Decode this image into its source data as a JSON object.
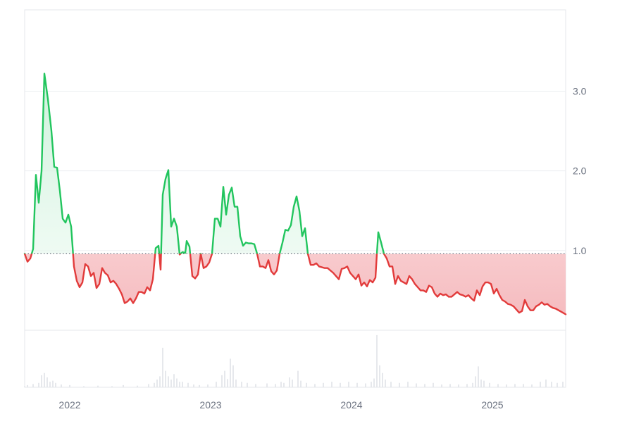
{
  "chart_data": {
    "type": "area",
    "baseline": 0.96,
    "y_ticks": [
      {
        "value": 1.0,
        "label": "1.0"
      },
      {
        "value": 2.0,
        "label": "2.0"
      },
      {
        "value": 3.0,
        "label": "3.0"
      }
    ],
    "x_ticks": [
      {
        "value": 2022.0,
        "label": "2022"
      },
      {
        "value": 2023.0,
        "label": "2023"
      },
      {
        "value": 2024.0,
        "label": "2024"
      },
      {
        "value": 2025.0,
        "label": "2025"
      }
    ],
    "xlim": [
      2021.68,
      2025.52
    ],
    "ylim": [
      0,
      4.02
    ],
    "grid": true,
    "colors": {
      "up_line": "#22c55e",
      "down_line": "#e23b3b",
      "up_fill": "#d8f5e3",
      "down_fill": "#f7c9cb",
      "grid": "#eceef1",
      "baseline": "#6b7280",
      "volume": "#dfe3e8"
    },
    "series": [
      {
        "values": [
          [
            2021.68,
            0.96
          ],
          [
            2021.7,
            0.86
          ],
          [
            2021.72,
            0.9
          ],
          [
            2021.74,
            1.02
          ],
          [
            2021.76,
            1.95
          ],
          [
            2021.78,
            1.6
          ],
          [
            2021.8,
            2.0
          ],
          [
            2021.82,
            3.22
          ],
          [
            2021.845,
            2.9
          ],
          [
            2021.87,
            2.5
          ],
          [
            2021.89,
            2.05
          ],
          [
            2021.91,
            2.04
          ],
          [
            2021.93,
            1.75
          ],
          [
            2021.95,
            1.4
          ],
          [
            2021.97,
            1.35
          ],
          [
            2021.99,
            1.45
          ],
          [
            2022.01,
            1.3
          ],
          [
            2022.03,
            0.8
          ],
          [
            2022.05,
            0.62
          ],
          [
            2022.07,
            0.54
          ],
          [
            2022.09,
            0.6
          ],
          [
            2022.11,
            0.83
          ],
          [
            2022.13,
            0.8
          ],
          [
            2022.15,
            0.68
          ],
          [
            2022.17,
            0.72
          ],
          [
            2022.19,
            0.53
          ],
          [
            2022.21,
            0.58
          ],
          [
            2022.23,
            0.78
          ],
          [
            2022.25,
            0.72
          ],
          [
            2022.27,
            0.69
          ],
          [
            2022.29,
            0.6
          ],
          [
            2022.31,
            0.62
          ],
          [
            2022.33,
            0.58
          ],
          [
            2022.35,
            0.52
          ],
          [
            2022.37,
            0.45
          ],
          [
            2022.39,
            0.34
          ],
          [
            2022.41,
            0.36
          ],
          [
            2022.43,
            0.4
          ],
          [
            2022.45,
            0.34
          ],
          [
            2022.47,
            0.4
          ],
          [
            2022.49,
            0.48
          ],
          [
            2022.51,
            0.48
          ],
          [
            2022.53,
            0.46
          ],
          [
            2022.55,
            0.54
          ],
          [
            2022.57,
            0.5
          ],
          [
            2022.59,
            0.64
          ],
          [
            2022.61,
            1.03
          ],
          [
            2022.63,
            1.06
          ],
          [
            2022.645,
            0.76
          ],
          [
            2022.66,
            1.7
          ],
          [
            2022.68,
            1.9
          ],
          [
            2022.7,
            2.01
          ],
          [
            2022.72,
            1.3
          ],
          [
            2022.74,
            1.4
          ],
          [
            2022.76,
            1.3
          ],
          [
            2022.78,
            0.95
          ],
          [
            2022.8,
            0.98
          ],
          [
            2022.82,
            0.97
          ],
          [
            2022.83,
            1.12
          ],
          [
            2022.85,
            1.05
          ],
          [
            2022.87,
            0.68
          ],
          [
            2022.89,
            0.65
          ],
          [
            2022.91,
            0.7
          ],
          [
            2022.93,
            0.96
          ],
          [
            2022.95,
            0.78
          ],
          [
            2022.97,
            0.8
          ],
          [
            2022.99,
            0.85
          ],
          [
            2023.01,
            0.96
          ],
          [
            2023.03,
            1.4
          ],
          [
            2023.05,
            1.4
          ],
          [
            2023.07,
            1.3
          ],
          [
            2023.09,
            1.8
          ],
          [
            2023.11,
            1.45
          ],
          [
            2023.13,
            1.7
          ],
          [
            2023.15,
            1.79
          ],
          [
            2023.17,
            1.55
          ],
          [
            2023.19,
            1.55
          ],
          [
            2023.21,
            1.18
          ],
          [
            2023.23,
            1.06
          ],
          [
            2023.25,
            1.1
          ],
          [
            2023.27,
            1.09
          ],
          [
            2023.29,
            1.09
          ],
          [
            2023.31,
            1.08
          ],
          [
            2023.33,
            0.96
          ],
          [
            2023.35,
            0.8
          ],
          [
            2023.37,
            0.8
          ],
          [
            2023.39,
            0.78
          ],
          [
            2023.41,
            0.88
          ],
          [
            2023.43,
            0.74
          ],
          [
            2023.45,
            0.7
          ],
          [
            2023.47,
            0.75
          ],
          [
            2023.49,
            0.96
          ],
          [
            2023.51,
            1.1
          ],
          [
            2023.53,
            1.26
          ],
          [
            2023.55,
            1.25
          ],
          [
            2023.57,
            1.32
          ],
          [
            2023.59,
            1.55
          ],
          [
            2023.61,
            1.68
          ],
          [
            2023.63,
            1.5
          ],
          [
            2023.65,
            1.18
          ],
          [
            2023.67,
            1.28
          ],
          [
            2023.69,
            0.96
          ],
          [
            2023.71,
            0.82
          ],
          [
            2023.73,
            0.82
          ],
          [
            2023.75,
            0.84
          ],
          [
            2023.77,
            0.8
          ],
          [
            2023.79,
            0.79
          ],
          [
            2023.81,
            0.78
          ],
          [
            2023.83,
            0.78
          ],
          [
            2023.85,
            0.75
          ],
          [
            2023.87,
            0.72
          ],
          [
            2023.89,
            0.68
          ],
          [
            2023.91,
            0.64
          ],
          [
            2023.93,
            0.77
          ],
          [
            2023.95,
            0.78
          ],
          [
            2023.97,
            0.8
          ],
          [
            2023.99,
            0.72
          ],
          [
            2024.01,
            0.68
          ],
          [
            2024.03,
            0.64
          ],
          [
            2024.05,
            0.7
          ],
          [
            2024.07,
            0.56
          ],
          [
            2024.09,
            0.6
          ],
          [
            2024.11,
            0.55
          ],
          [
            2024.13,
            0.63
          ],
          [
            2024.15,
            0.6
          ],
          [
            2024.17,
            0.66
          ],
          [
            2024.18,
            0.96
          ],
          [
            2024.19,
            1.23
          ],
          [
            2024.21,
            1.1
          ],
          [
            2024.23,
            0.96
          ],
          [
            2024.25,
            0.9
          ],
          [
            2024.27,
            0.8
          ],
          [
            2024.29,
            0.8
          ],
          [
            2024.31,
            0.58
          ],
          [
            2024.33,
            0.68
          ],
          [
            2024.35,
            0.62
          ],
          [
            2024.37,
            0.6
          ],
          [
            2024.39,
            0.58
          ],
          [
            2024.41,
            0.68
          ],
          [
            2024.43,
            0.64
          ],
          [
            2024.45,
            0.58
          ],
          [
            2024.47,
            0.54
          ],
          [
            2024.49,
            0.5
          ],
          [
            2024.51,
            0.5
          ],
          [
            2024.53,
            0.48
          ],
          [
            2024.55,
            0.56
          ],
          [
            2024.57,
            0.54
          ],
          [
            2024.59,
            0.46
          ],
          [
            2024.61,
            0.42
          ],
          [
            2024.63,
            0.46
          ],
          [
            2024.65,
            0.44
          ],
          [
            2024.67,
            0.45
          ],
          [
            2024.69,
            0.42
          ],
          [
            2024.71,
            0.42
          ],
          [
            2024.73,
            0.45
          ],
          [
            2024.75,
            0.48
          ],
          [
            2024.77,
            0.45
          ],
          [
            2024.79,
            0.44
          ],
          [
            2024.81,
            0.42
          ],
          [
            2024.83,
            0.44
          ],
          [
            2024.85,
            0.4
          ],
          [
            2024.87,
            0.37
          ],
          [
            2024.89,
            0.5
          ],
          [
            2024.91,
            0.44
          ],
          [
            2024.93,
            0.55
          ],
          [
            2024.95,
            0.6
          ],
          [
            2024.97,
            0.6
          ],
          [
            2024.99,
            0.58
          ],
          [
            2025.01,
            0.46
          ],
          [
            2025.03,
            0.52
          ],
          [
            2025.05,
            0.44
          ],
          [
            2025.07,
            0.38
          ],
          [
            2025.09,
            0.36
          ],
          [
            2025.11,
            0.33
          ],
          [
            2025.13,
            0.32
          ],
          [
            2025.15,
            0.3
          ],
          [
            2025.17,
            0.26
          ],
          [
            2025.19,
            0.22
          ],
          [
            2025.21,
            0.24
          ],
          [
            2025.23,
            0.38
          ],
          [
            2025.25,
            0.3
          ],
          [
            2025.27,
            0.25
          ],
          [
            2025.29,
            0.25
          ],
          [
            2025.31,
            0.3
          ],
          [
            2025.33,
            0.32
          ],
          [
            2025.35,
            0.35
          ],
          [
            2025.37,
            0.32
          ],
          [
            2025.39,
            0.33
          ],
          [
            2025.41,
            0.3
          ],
          [
            2025.43,
            0.28
          ],
          [
            2025.45,
            0.27
          ],
          [
            2025.47,
            0.25
          ],
          [
            2025.49,
            0.23
          ],
          [
            2025.52,
            0.2
          ]
        ]
      }
    ],
    "volume": {
      "max": 1.0,
      "values": [
        [
          2021.68,
          0.02
        ],
        [
          2021.7,
          0.04
        ],
        [
          2021.74,
          0.06
        ],
        [
          2021.78,
          0.08
        ],
        [
          2021.8,
          0.22
        ],
        [
          2021.82,
          0.26
        ],
        [
          2021.84,
          0.18
        ],
        [
          2021.86,
          0.1
        ],
        [
          2021.88,
          0.12
        ],
        [
          2021.9,
          0.08
        ],
        [
          2021.94,
          0.05
        ],
        [
          2022.0,
          0.04
        ],
        [
          2022.1,
          0.02
        ],
        [
          2022.2,
          0.03
        ],
        [
          2022.3,
          0.02
        ],
        [
          2022.38,
          0.04
        ],
        [
          2022.48,
          0.03
        ],
        [
          2022.56,
          0.06
        ],
        [
          2022.6,
          0.08
        ],
        [
          2022.62,
          0.14
        ],
        [
          2022.64,
          0.2
        ],
        [
          2022.66,
          0.72
        ],
        [
          2022.68,
          0.3
        ],
        [
          2022.7,
          0.2
        ],
        [
          2022.72,
          0.14
        ],
        [
          2022.74,
          0.24
        ],
        [
          2022.76,
          0.16
        ],
        [
          2022.78,
          0.1
        ],
        [
          2022.8,
          0.1
        ],
        [
          2022.84,
          0.08
        ],
        [
          2022.88,
          0.05
        ],
        [
          2022.92,
          0.04
        ],
        [
          2022.98,
          0.05
        ],
        [
          2023.04,
          0.1
        ],
        [
          2023.08,
          0.22
        ],
        [
          2023.1,
          0.3
        ],
        [
          2023.12,
          0.15
        ],
        [
          2023.14,
          0.52
        ],
        [
          2023.16,
          0.4
        ],
        [
          2023.18,
          0.14
        ],
        [
          2023.22,
          0.1
        ],
        [
          2023.26,
          0.08
        ],
        [
          2023.32,
          0.06
        ],
        [
          2023.4,
          0.07
        ],
        [
          2023.46,
          0.06
        ],
        [
          2023.5,
          0.1
        ],
        [
          2023.52,
          0.08
        ],
        [
          2023.56,
          0.18
        ],
        [
          2023.58,
          0.14
        ],
        [
          2023.62,
          0.3
        ],
        [
          2023.64,
          0.12
        ],
        [
          2023.68,
          0.08
        ],
        [
          2023.74,
          0.06
        ],
        [
          2023.8,
          0.08
        ],
        [
          2023.86,
          0.1
        ],
        [
          2023.92,
          0.08
        ],
        [
          2023.98,
          0.1
        ],
        [
          2024.04,
          0.08
        ],
        [
          2024.1,
          0.07
        ],
        [
          2024.14,
          0.1
        ],
        [
          2024.16,
          0.16
        ],
        [
          2024.18,
          0.95
        ],
        [
          2024.2,
          0.4
        ],
        [
          2024.22,
          0.26
        ],
        [
          2024.24,
          0.14
        ],
        [
          2024.28,
          0.1
        ],
        [
          2024.34,
          0.08
        ],
        [
          2024.4,
          0.1
        ],
        [
          2024.46,
          0.07
        ],
        [
          2024.52,
          0.06
        ],
        [
          2024.58,
          0.08
        ],
        [
          2024.64,
          0.05
        ],
        [
          2024.7,
          0.06
        ],
        [
          2024.76,
          0.05
        ],
        [
          2024.82,
          0.06
        ],
        [
          2024.86,
          0.08
        ],
        [
          2024.88,
          0.2
        ],
        [
          2024.9,
          0.38
        ],
        [
          2024.92,
          0.14
        ],
        [
          2024.94,
          0.12
        ],
        [
          2024.98,
          0.08
        ],
        [
          2025.04,
          0.06
        ],
        [
          2025.1,
          0.05
        ],
        [
          2025.16,
          0.06
        ],
        [
          2025.22,
          0.06
        ],
        [
          2025.28,
          0.05
        ],
        [
          2025.34,
          0.1
        ],
        [
          2025.38,
          0.14
        ],
        [
          2025.42,
          0.1
        ],
        [
          2025.46,
          0.08
        ],
        [
          2025.5,
          0.1
        ]
      ]
    }
  }
}
